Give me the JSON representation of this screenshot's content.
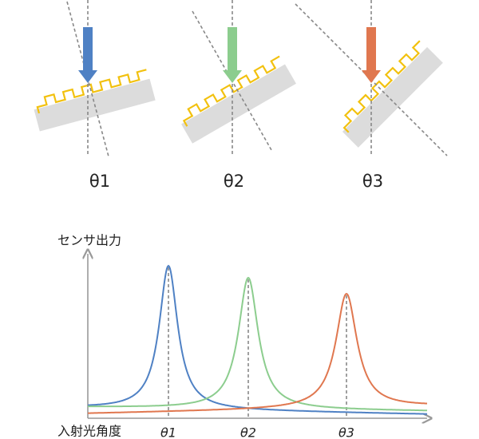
{
  "panels": [
    {
      "label": "θ1"
    },
    {
      "label": "θ2"
    },
    {
      "label": "θ3"
    }
  ],
  "graph": {
    "y_label": "センサ出力",
    "x_label": "入射光角度",
    "x_ticks": [
      "θ1",
      "θ2",
      "θ3"
    ]
  }
}
